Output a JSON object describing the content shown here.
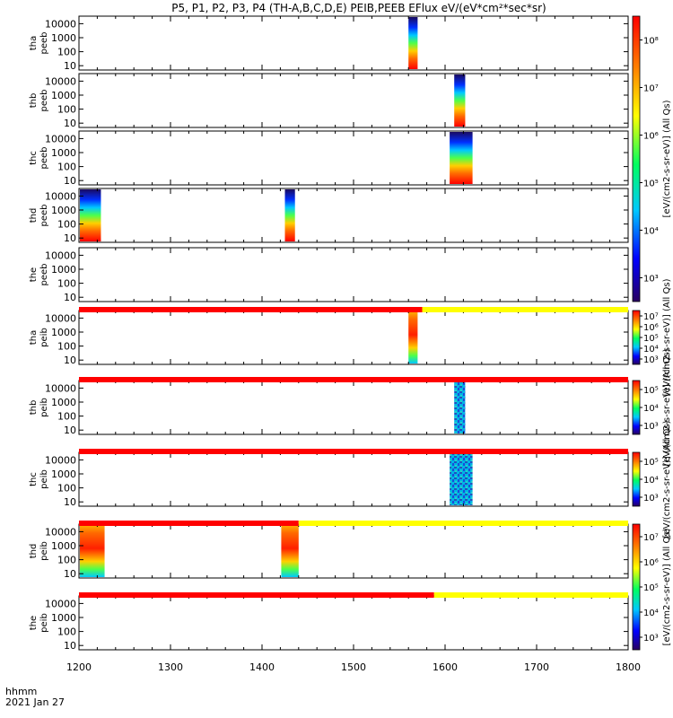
{
  "chart_data": {
    "type": "heatmap",
    "title": "P5, P1, P2, P3, P4 (TH-A,B,C,D,E) PEIB,PEEB EFlux eV/(eV*cm²*sec*sr)",
    "x_range": [
      1200,
      1800
    ],
    "x_ticks": [
      "1200",
      "1300",
      "1400",
      "1500",
      "1600",
      "1700",
      "1800"
    ],
    "footer": {
      "line1": "hhmm",
      "line2": "2021 Jan 27"
    },
    "panels": [
      {
        "label1": "tha",
        "label2": "peeb",
        "yticks": [
          "10000",
          "1000",
          "100",
          "10"
        ],
        "blocks": [
          {
            "x0": 1560,
            "x1": 1570,
            "colormap": "electron"
          }
        ]
      },
      {
        "label1": "thb",
        "label2": "peeb",
        "yticks": [
          "10000",
          "1000",
          "100",
          "10"
        ],
        "blocks": [
          {
            "x0": 1610,
            "x1": 1622,
            "colormap": "electron"
          }
        ]
      },
      {
        "label1": "thc",
        "label2": "peeb",
        "yticks": [
          "10000",
          "1000",
          "100",
          "10"
        ],
        "blocks": [
          {
            "x0": 1605,
            "x1": 1630,
            "colormap": "electron"
          }
        ]
      },
      {
        "label1": "thd",
        "label2": "peeb",
        "yticks": [
          "10000",
          "1000",
          "100",
          "10"
        ],
        "blocks": [
          {
            "x0": 1201,
            "x1": 1224,
            "colormap": "electron"
          },
          {
            "x0": 1425,
            "x1": 1436,
            "colormap": "electron"
          }
        ]
      },
      {
        "label1": "the",
        "label2": "peeb",
        "yticks": [
          "10000",
          "1000",
          "100",
          "10"
        ],
        "blocks": []
      },
      {
        "label1": "tha",
        "label2": "peib",
        "yticks": [
          "10000",
          "1000",
          "100",
          "10"
        ],
        "blocks": [
          {
            "x0": 1560,
            "x1": 1570,
            "colormap": "ion"
          }
        ]
      },
      {
        "label1": "thb",
        "label2": "peib",
        "yticks": [
          "10000",
          "1000",
          "100",
          "10"
        ],
        "blocks": [
          {
            "x0": 1610,
            "x1": 1622,
            "colormap": "speckle"
          }
        ]
      },
      {
        "label1": "thc",
        "label2": "peib",
        "yticks": [
          "10000",
          "1000",
          "100",
          "10"
        ],
        "blocks": [
          {
            "x0": 1605,
            "x1": 1630,
            "colormap": "speckle"
          }
        ]
      },
      {
        "label1": "thd",
        "label2": "peib",
        "yticks": [
          "10000",
          "1000",
          "100",
          "10"
        ],
        "blocks": [
          {
            "x0": 1201,
            "x1": 1228,
            "colormap": "ion"
          },
          {
            "x0": 1421,
            "x1": 1440,
            "colormap": "ion"
          }
        ]
      },
      {
        "label1": "the",
        "label2": "peib",
        "yticks": [
          "10000",
          "1000",
          "100",
          "10"
        ],
        "blocks": []
      }
    ],
    "mode_bars": [
      {
        "after_panel": 4,
        "segments": [
          {
            "x0": 1200,
            "x1": 1575,
            "color": "#ff0000"
          },
          {
            "x0": 1575,
            "x1": 1800,
            "color": "#ffff00"
          }
        ]
      },
      {
        "after_panel": 5,
        "segments": [
          {
            "x0": 1200,
            "x1": 1800,
            "color": "#ff0000"
          }
        ]
      },
      {
        "after_panel": 6,
        "segments": [
          {
            "x0": 1200,
            "x1": 1800,
            "color": "#ff0000"
          }
        ]
      },
      {
        "after_panel": 7,
        "segments": [
          {
            "x0": 1200,
            "x1": 1440,
            "color": "#ff0000"
          },
          {
            "x0": 1440,
            "x1": 1800,
            "color": "#ffff00"
          }
        ]
      },
      {
        "after_panel": 8,
        "segments": [
          {
            "x0": 1200,
            "x1": 1588,
            "color": "#ff0000"
          },
          {
            "x0": 1588,
            "x1": 1800,
            "color": "#ffff00"
          }
        ]
      }
    ],
    "colorbars": [
      {
        "panels": [
          0,
          4
        ],
        "ticks": [
          "10⁸",
          "10⁷",
          "10⁶",
          "10⁵",
          "10⁴",
          "10³"
        ],
        "label": "[eV/(cm2-s-sr-eV)] (All Qs)"
      },
      {
        "panels": [
          5,
          5
        ],
        "ticks": [
          "10⁷",
          "10⁶",
          "10⁵",
          "10⁴",
          "10³"
        ],
        "label": "[eV/(cm2-s-sr-eV)] (All Qs)"
      },
      {
        "panels": [
          6,
          6
        ],
        "ticks": [
          "10⁵",
          "10⁴",
          "10³"
        ],
        "label": "[eV/(cm2-s-sr-eV)] (All Qs)"
      },
      {
        "panels": [
          7,
          7
        ],
        "ticks": [
          "10⁵",
          "10⁴",
          "10³"
        ],
        "label": "[eV/(cm2-s-sr-eV)] (All Qs)"
      },
      {
        "panels": [
          8,
          9
        ],
        "ticks": [
          "10⁷",
          "10⁶",
          "10⁵",
          "10⁴",
          "10³"
        ],
        "label": "[eV/(cm2-s-sr-eV)] (All Qs)"
      }
    ]
  }
}
